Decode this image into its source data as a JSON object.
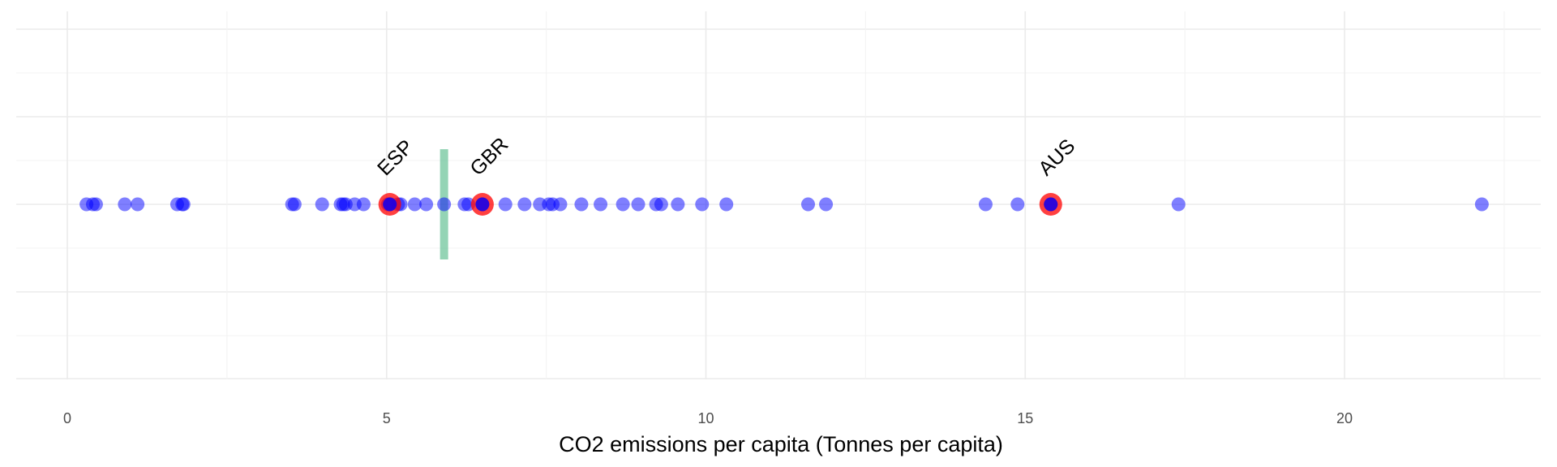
{
  "chart_data": {
    "type": "scatter",
    "title": "",
    "xlabel": "CO2 emissions per capita (Tonnes per capita)",
    "ylabel": "",
    "xlim": [
      -0.8,
      23.1
    ],
    "x_ticks": [
      0,
      5,
      10,
      15,
      20
    ],
    "x_tick_labels": [
      "0",
      "5",
      "10",
      "15",
      "20"
    ],
    "grid": true,
    "legend": "none",
    "point_color": "#0000ff",
    "point_opacity": 0.5,
    "highlight_color": "#ff0000",
    "reference_line_color": "#66c296",
    "series": [
      {
        "values": [
          0.3,
          0.4,
          0.45,
          0.9,
          1.1,
          1.72,
          1.8,
          1.82,
          3.52,
          3.56,
          3.99,
          4.28,
          4.32,
          4.36,
          4.5,
          4.64,
          5.02,
          5.05,
          5.18,
          5.22,
          5.44,
          5.62,
          5.9,
          6.22,
          6.28,
          6.5,
          6.86,
          7.16,
          7.4,
          7.54,
          7.6,
          7.72,
          8.05,
          8.35,
          8.7,
          8.94,
          9.22,
          9.3,
          9.56,
          9.94,
          10.32,
          11.6,
          11.88,
          14.38,
          14.88,
          15.4,
          17.4,
          22.15
        ]
      }
    ],
    "highlighted": [
      {
        "label": "ESP",
        "x": 5.05
      },
      {
        "label": "GBR",
        "x": 6.5
      },
      {
        "label": "AUS",
        "x": 15.4
      }
    ],
    "reference_line": {
      "x": 5.9
    }
  }
}
